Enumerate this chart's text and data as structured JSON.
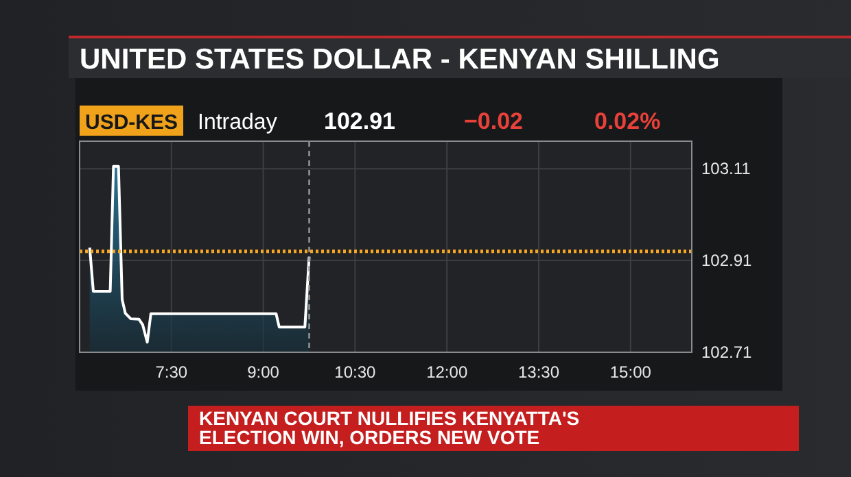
{
  "chart_data": {
    "type": "area",
    "title": "UNITED STATES DOLLAR - KENYAN SHILLING",
    "annotations": [
      "USD-KES",
      "Intraday",
      "102.91",
      "−0.02",
      "0.02%",
      "KENYAN COURT NULLIFIES KENYATTA'S ELECTION WIN, ORDERS NEW VOTE"
    ],
    "x": [
      6.165,
      6.224,
      6.5,
      6.553,
      6.635,
      6.695,
      6.747,
      6.836,
      6.97,
      7.03,
      7.105,
      7.164,
      9.21,
      9.26,
      9.68,
      9.75
    ],
    "series": [
      {
        "color": "#ffffff",
        "values": [
          102.938,
          102.843,
          102.843,
          103.115,
          103.115,
          102.825,
          102.795,
          102.783,
          102.782,
          102.77,
          102.732,
          102.794,
          102.794,
          102.765,
          102.765,
          102.918
        ]
      }
    ],
    "xlim": [
      6,
      16
    ],
    "xticks": [
      {
        "value": 7.5,
        "label": "7:30"
      },
      {
        "value": 9,
        "label": "9:00"
      },
      {
        "value": 10.5,
        "label": "10:30"
      },
      {
        "value": 12,
        "label": "12:00"
      },
      {
        "value": 13.5,
        "label": "13:30"
      },
      {
        "value": 15,
        "label": "15:00"
      }
    ],
    "ylim": [
      102.71,
      103.17
    ],
    "yticks": [
      102.71,
      102.91,
      103.11
    ],
    "ref_lines": [
      {
        "axis": "y",
        "value": 102.93,
        "color": "#f5a623",
        "line_style": "dotted"
      },
      {
        "axis": "x",
        "value": 9.75,
        "color": "#9a9a9a",
        "line_style": "dashed"
      }
    ],
    "grid": true,
    "marker": "none",
    "line_style": "solid"
  }
}
